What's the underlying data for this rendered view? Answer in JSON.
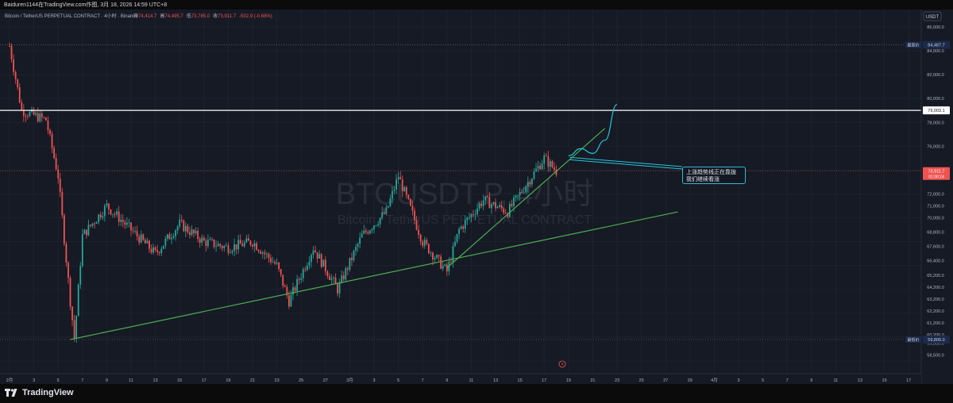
{
  "header": {
    "caption": "Baiduren1144在TradingView.com作图, 3月 18, 2026 14:59 UTC+8"
  },
  "legend": {
    "symbol": "Bitcoin / TetherUS PERPETUAL CONTRACT · 4小时 · Binance",
    "open_label": "开",
    "open": "74,414.7",
    "high_label": "高",
    "high": "74,495.7",
    "low_label": "低",
    "low": "73,785.0",
    "close_label": "收",
    "close": "73,911.7",
    "change": "-502.9 (-0.68%)"
  },
  "watermark": {
    "title": "BTCUSDT.P, 4小时",
    "subtitle": "Bitcoin / TetherUS PERPETUAL CONTRACT"
  },
  "annotation": {
    "line1": "上涨趋势线正在靠拢",
    "line2": "我们继续看涨"
  },
  "price_axis": {
    "currency": "USDT",
    "ticks": [
      "86,000.0",
      "84,000.0",
      "82,000.0",
      "80,000.0",
      "78,000.0",
      "76,000.0",
      "74,000.0",
      "72,000.0",
      "71,000.0",
      "70,000.0",
      "68,800.0",
      "67,600.0",
      "66,400.0",
      "65,200.0",
      "64,200.0",
      "63,200.0",
      "62,200.0",
      "61,200.0",
      "60,200.0",
      "59,500.0",
      "58,500.0"
    ],
    "high_label": "最高价",
    "high_value": "84,487.7",
    "low_label": "最低价",
    "low_value": "59,800.0",
    "hline_value": "79,003.1",
    "last_price": "73,911.7",
    "countdown": "01:00:24"
  },
  "time_axis": {
    "ticks": [
      "2月",
      "3",
      "5",
      "7",
      "9",
      "11",
      "13",
      "15",
      "17",
      "19",
      "21",
      "23",
      "25",
      "27",
      "3月",
      "3",
      "5",
      "7",
      "9",
      "11",
      "13",
      "15",
      "17",
      "19",
      "21",
      "23",
      "25",
      "27",
      "29",
      "4月",
      "3",
      "5",
      "7",
      "9",
      "11",
      "13",
      "15",
      "17"
    ]
  },
  "footer": {
    "brand": "TradingView"
  },
  "colors": {
    "up": "#26a69a",
    "down": "#ef5350",
    "trendline": "#4caf50",
    "projection": "#26c6da",
    "hline": "#ffffff"
  },
  "chart_data": {
    "type": "candlestick",
    "symbol": "BTCUSDT.P",
    "interval": "4小时",
    "ylim": [
      58000,
      87000
    ],
    "key_points": [
      {
        "date": "2026-02-01",
        "close": 84400
      },
      {
        "date": "2026-02-02",
        "close": 79000
      },
      {
        "date": "2026-02-04",
        "close": 78200
      },
      {
        "date": "2026-02-05",
        "close": 73500
      },
      {
        "date": "2026-02-06",
        "close": 63000
      },
      {
        "date": "2026-02-06",
        "close": 59800
      },
      {
        "date": "2026-02-07",
        "close": 68500
      },
      {
        "date": "2026-02-09",
        "close": 71000
      },
      {
        "date": "2026-02-11",
        "close": 69000
      },
      {
        "date": "2026-02-13",
        "close": 67000
      },
      {
        "date": "2026-02-15",
        "close": 69500
      },
      {
        "date": "2026-02-17",
        "close": 68000
      },
      {
        "date": "2026-02-19",
        "close": 67500
      },
      {
        "date": "2026-02-21",
        "close": 68000
      },
      {
        "date": "2026-02-23",
        "close": 66000
      },
      {
        "date": "2026-02-24",
        "close": 63000
      },
      {
        "date": "2026-02-26",
        "close": 67500
      },
      {
        "date": "2026-02-28",
        "close": 64000
      },
      {
        "date": "2026-03-02",
        "close": 68500
      },
      {
        "date": "2026-03-04",
        "close": 70500
      },
      {
        "date": "2026-03-05",
        "close": 73500
      },
      {
        "date": "2026-03-07",
        "close": 68000
      },
      {
        "date": "2026-03-09",
        "close": 65500
      },
      {
        "date": "2026-03-10",
        "close": 69000
      },
      {
        "date": "2026-03-12",
        "close": 71500
      },
      {
        "date": "2026-03-14",
        "close": 70500
      },
      {
        "date": "2026-03-16",
        "close": 73500
      },
      {
        "date": "2026-03-17",
        "close": 75000
      },
      {
        "date": "2026-03-18",
        "close": 73911.7
      }
    ],
    "horizontal_line": 79003.1,
    "trendlines": [
      {
        "from": {
          "date": "2026-02-06",
          "price": 59800
        },
        "to": {
          "date": "2026-03-28",
          "price": 70500
        }
      },
      {
        "from": {
          "date": "2026-03-09",
          "price": 65800
        },
        "to": {
          "date": "2026-03-22",
          "price": 77500
        }
      }
    ],
    "projection": [
      {
        "date": "2026-03-19",
        "price": 75200
      },
      {
        "date": "2026-03-20",
        "price": 75800
      },
      {
        "date": "2026-03-21",
        "price": 75400
      },
      {
        "date": "2026-03-22",
        "price": 76500
      },
      {
        "date": "2026-03-23",
        "price": 79500
      }
    ]
  }
}
